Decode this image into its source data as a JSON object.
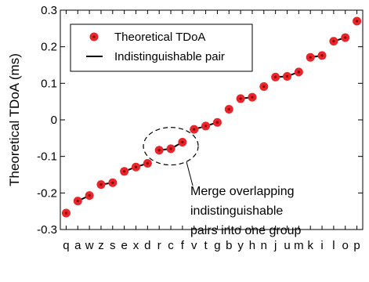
{
  "chart_data": {
    "type": "scatter",
    "title": "",
    "xlabel": "",
    "ylabel": "Theoretical TDoA (ms)",
    "ylim": [
      -0.3,
      0.3
    ],
    "yticks": [
      -0.3,
      -0.2,
      -0.1,
      0,
      0.1,
      0.2,
      0.3
    ],
    "ytick_labels": [
      "-0.3",
      "-0.2",
      "-0.1",
      "0",
      "0.1",
      "0.2",
      "0.3"
    ],
    "categories": [
      "q",
      "a",
      "w",
      "z",
      "s",
      "e",
      "x",
      "d",
      "r",
      "c",
      "f",
      "v",
      "t",
      "g",
      "b",
      "y",
      "h",
      "n",
      "j",
      "u",
      "m",
      "k",
      "i",
      "l",
      "o",
      "p"
    ],
    "values": [
      -0.255,
      -0.222,
      -0.207,
      -0.177,
      -0.172,
      -0.141,
      -0.129,
      -0.119,
      -0.083,
      -0.079,
      -0.061,
      -0.026,
      -0.017,
      -0.007,
      0.029,
      0.058,
      0.062,
      0.091,
      0.117,
      0.119,
      0.131,
      0.171,
      0.176,
      0.215,
      0.225,
      0.27
    ],
    "indistinguishable_pairs": [
      [
        1,
        2
      ],
      [
        3,
        4
      ],
      [
        5,
        6
      ],
      [
        6,
        7
      ],
      [
        8,
        9
      ],
      [
        9,
        10
      ],
      [
        11,
        12
      ],
      [
        12,
        13
      ],
      [
        15,
        16
      ],
      [
        18,
        19
      ],
      [
        19,
        20
      ],
      [
        21,
        22
      ],
      [
        23,
        24
      ]
    ],
    "grid": false,
    "legend_position": "top-left",
    "legend": {
      "marker_label": "Theoretical TDoA",
      "line_label": "Indistinguishable pair"
    },
    "annotation": {
      "lines": [
        "Merge overlapping",
        "indistinguishable",
        "pairs into one group"
      ],
      "target_indices": [
        8,
        9,
        10
      ]
    },
    "colors": {
      "marker": "#e8262a",
      "marker_center": "#8b0000",
      "pair_line": "#000000",
      "axes": "#000000"
    }
  }
}
